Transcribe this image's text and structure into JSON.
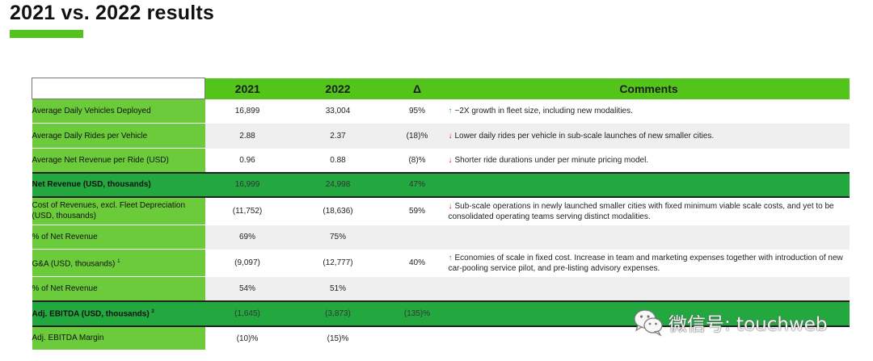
{
  "title": "2021 vs. 2022 results",
  "header": {
    "col2021": "2021",
    "col2022": "2022",
    "delta": "Δ",
    "comments": "Comments"
  },
  "rows": [
    {
      "label": "Average Daily Vehicles Deployed",
      "v2021": "16,899",
      "v2022": "33,004",
      "delta": "95%",
      "arrow": "↑",
      "comment": "~2X growth in fleet size, including new modalities."
    },
    {
      "label": "Average Daily Rides per Vehicle",
      "v2021": "2.88",
      "v2022": "2.37",
      "delta": "(18)%",
      "arrow": "↓",
      "comment": "Lower daily rides per vehicle in sub-scale launches of new smaller cities."
    },
    {
      "label": "Average Net Revenue per Ride (USD)",
      "v2021": "0.96",
      "v2022": "0.88",
      "delta": "(8)%",
      "arrow": "↓",
      "comment": "Shorter ride durations under per minute pricing model."
    },
    {
      "label": "Net Revenue (USD, thousands)",
      "v2021": "16,999",
      "v2022": "24,998",
      "delta": "47%",
      "arrow": "",
      "comment": ""
    },
    {
      "label": "Cost of Revenues, excl. Fleet Depreciation (USD, thousands)",
      "v2021": "(11,752)",
      "v2022": "(18,636)",
      "delta": "59%",
      "arrow": "↓",
      "comment": "Sub-scale operations in newly launched smaller cities with fixed minimum viable scale costs, and yet to be consolidated operating teams serving distinct modalities."
    },
    {
      "label": "% of Net Revenue",
      "v2021": "69%",
      "v2022": "75%",
      "delta": "",
      "arrow": "",
      "comment": ""
    },
    {
      "label": "G&A (USD, thousands)",
      "sup": "1",
      "v2021": "(9,097)",
      "v2022": "(12,777)",
      "delta": "40%",
      "arrow": "↑",
      "comment": "Economies of scale in fixed cost. Increase in team and marketing expenses together with introduction of new car-pooling service pilot, and pre-listing advisory expenses."
    },
    {
      "label": "% of Net Revenue",
      "v2021": "54%",
      "v2022": "51%",
      "delta": "",
      "arrow": "",
      "comment": ""
    },
    {
      "label": "Adj. EBITDA (USD, thousands)",
      "sup": "2",
      "v2021": "(1,645)",
      "v2022": "(3,873)",
      "delta": "(135)%",
      "arrow": "",
      "comment": ""
    },
    {
      "label": "Adj. EBITDA Margin",
      "v2021": "(10)%",
      "v2022": "(15)%",
      "delta": "",
      "arrow": "",
      "comment": ""
    }
  ],
  "watermark": {
    "text": "微信号: touchweb"
  },
  "colors": {
    "accent": "#52c41a",
    "emphasis_row": "#23a840",
    "arrow_up": "#2fa82f",
    "arrow_down": "#d22d1f"
  }
}
